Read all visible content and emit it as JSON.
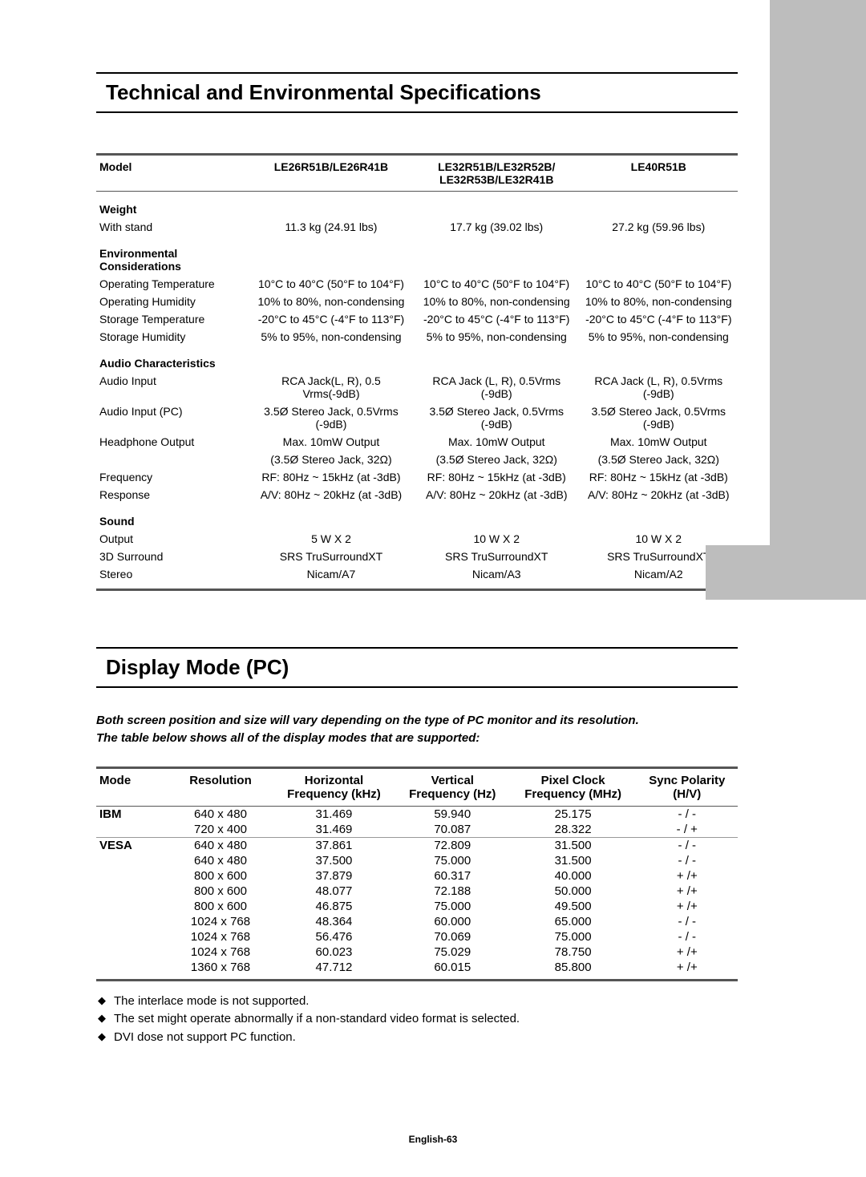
{
  "headings": {
    "tech_env": "Technical and Environmental Specifications",
    "display_mode": "Display Mode (PC)"
  },
  "spec_table": {
    "headers": {
      "model": "Model",
      "col1": "LE26R51B/LE26R41B",
      "col2_line1": "LE32R51B/LE32R52B/",
      "col2_line2": "LE32R53B/LE32R41B",
      "col3": "LE40R51B"
    },
    "sections": {
      "weight": {
        "title": "Weight",
        "rows": [
          {
            "label": "With stand",
            "c1": "11.3 kg (24.91 lbs)",
            "c2": "17.7 kg (39.02 lbs)",
            "c3": "27.2 kg (59.96 lbs)"
          }
        ]
      },
      "env": {
        "title": "Environmental Considerations",
        "rows": [
          {
            "label": "Operating Temperature",
            "c1": "10°C to 40°C (50°F to 104°F)",
            "c2": "10°C to 40°C (50°F to 104°F)",
            "c3": "10°C to 40°C (50°F to 104°F)"
          },
          {
            "label": "Operating Humidity",
            "c1": "10% to 80%, non-condensing",
            "c2": "10% to 80%, non-condensing",
            "c3": "10% to 80%, non-condensing"
          },
          {
            "label": "Storage Temperature",
            "c1": "-20°C to 45°C (-4°F to 113°F)",
            "c2": "-20°C to 45°C (-4°F to 113°F)",
            "c3": "-20°C to 45°C (-4°F to 113°F)"
          },
          {
            "label": "Storage Humidity",
            "c1": "5% to 95%, non-condensing",
            "c2": "5% to 95%, non-condensing",
            "c3": "5% to 95%, non-condensing"
          }
        ]
      },
      "audio": {
        "title": "Audio Characteristics",
        "rows": [
          {
            "label": "Audio Input",
            "c1": "RCA Jack(L, R), 0.5 Vrms(-9dB)",
            "c2": "RCA Jack (L, R), 0.5Vrms (-9dB)",
            "c3": "RCA Jack (L, R), 0.5Vrms (-9dB)"
          },
          {
            "label": "Audio Input (PC)",
            "c1": "3.5Ø Stereo Jack, 0.5Vrms (-9dB)",
            "c2": "3.5Ø Stereo Jack, 0.5Vrms (-9dB)",
            "c3": "3.5Ø Stereo Jack, 0.5Vrms (-9dB)"
          },
          {
            "label": "Headphone Output",
            "c1": "Max. 10mW Output",
            "c2": "Max. 10mW Output",
            "c3": "Max. 10mW Output"
          },
          {
            "label": "",
            "c1": "(3.5Ø Stereo Jack, 32Ω)",
            "c2": "(3.5Ø Stereo Jack, 32Ω)",
            "c3": "(3.5Ø Stereo Jack, 32Ω)"
          },
          {
            "label": "Frequency",
            "c1": "RF: 80Hz ~ 15kHz (at -3dB)",
            "c2": "RF: 80Hz ~ 15kHz (at -3dB)",
            "c3": "RF: 80Hz ~ 15kHz (at -3dB)"
          },
          {
            "label": "Response",
            "c1": "A/V: 80Hz ~ 20kHz (at -3dB)",
            "c2": "A/V: 80Hz ~ 20kHz (at -3dB)",
            "c3": "A/V: 80Hz ~ 20kHz (at -3dB)"
          }
        ]
      },
      "sound": {
        "title": "Sound",
        "rows": [
          {
            "label": "Output",
            "c1": "5 W X 2",
            "c2": "10 W X 2",
            "c3": "10 W X 2"
          },
          {
            "label": "3D Surround",
            "c1": "SRS TruSurroundXT",
            "c2": "SRS TruSurroundXT",
            "c3": "SRS TruSurroundXT"
          },
          {
            "label": "Stereo",
            "c1": "Nicam/A7",
            "c2": "Nicam/A3",
            "c3": "Nicam/A2"
          }
        ]
      }
    }
  },
  "display_note_line1": "Both screen position and size will vary depending on the type of PC monitor and its resolution.",
  "display_note_line2": "The table below shows all of the display modes that are supported:",
  "mode_table": {
    "headers": {
      "mode": "Mode",
      "resolution": "Resolution",
      "hfreq_l1": "Horizontal",
      "hfreq_l2": "Frequency (kHz)",
      "vfreq_l1": "Vertical",
      "vfreq_l2": "Frequency (Hz)",
      "pclk_l1": "Pixel Clock",
      "pclk_l2": "Frequency (MHz)",
      "sync_l1": "Sync Polarity",
      "sync_l2": "(H/V)"
    },
    "groups": [
      {
        "name": "IBM",
        "rows": [
          {
            "res": "640 x 480",
            "h": "31.469",
            "v": "59.940",
            "p": "25.175",
            "s": "- / -"
          },
          {
            "res": "720 x 400",
            "h": "31.469",
            "v": "70.087",
            "p": "28.322",
            "s": "- / +"
          }
        ]
      },
      {
        "name": "VESA",
        "rows": [
          {
            "res": "640 x 480",
            "h": "37.861",
            "v": "72.809",
            "p": "31.500",
            "s": "- / -"
          },
          {
            "res": "640 x 480",
            "h": "37.500",
            "v": "75.000",
            "p": "31.500",
            "s": "- / -"
          },
          {
            "res": "800 x 600",
            "h": "37.879",
            "v": "60.317",
            "p": "40.000",
            "s": "+ /+"
          },
          {
            "res": "800 x 600",
            "h": "48.077",
            "v": "72.188",
            "p": "50.000",
            "s": "+ /+"
          },
          {
            "res": "800 x 600",
            "h": "46.875",
            "v": "75.000",
            "p": "49.500",
            "s": "+ /+"
          },
          {
            "res": "1024 x 768",
            "h": "48.364",
            "v": "60.000",
            "p": "65.000",
            "s": "- / -"
          },
          {
            "res": "1024 x 768",
            "h": "56.476",
            "v": "70.069",
            "p": "75.000",
            "s": "- / -"
          },
          {
            "res": "1024 x 768",
            "h": "60.023",
            "v": "75.029",
            "p": "78.750",
            "s": "+ /+"
          },
          {
            "res": "1360 x 768",
            "h": "47.712",
            "v": "60.015",
            "p": "85.800",
            "s": "+ /+"
          }
        ]
      }
    ]
  },
  "bullets": [
    "The interlace mode is not supported.",
    "The set might operate abnormally if a non-standard video format is selected.",
    "DVI dose not support PC function."
  ],
  "footer": "English-63"
}
